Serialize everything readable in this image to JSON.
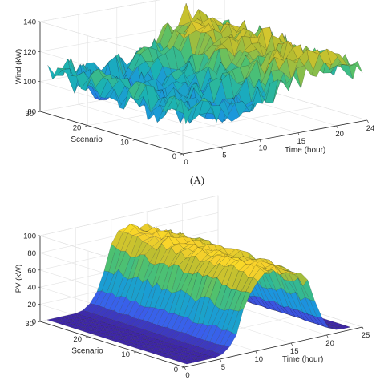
{
  "figure": {
    "caption_a": "(A)"
  },
  "chart_data": [
    {
      "type": "surface",
      "id": "wind",
      "zlabel": "Wind (kW)",
      "xlabel": "Time (hour)",
      "ylabel": "Scenario",
      "xlim": [
        0,
        24
      ],
      "ylim": [
        0,
        30
      ],
      "zlim": [
        80,
        140
      ],
      "xticks": [
        0,
        5,
        10,
        15,
        20,
        24
      ],
      "yticks": [
        0,
        10,
        20,
        30
      ],
      "zticks": [
        80,
        100,
        120,
        140
      ],
      "grid": true,
      "colormap": [
        "#3e26a8",
        "#3a5eeb",
        "#1b96dd",
        "#1ab2b4",
        "#50c16e",
        "#b6bc30",
        "#f9d22b",
        "#f9fb15"
      ],
      "time_points": [
        1,
        2,
        3,
        4,
        5,
        6,
        7,
        8,
        9,
        10,
        11,
        12,
        13,
        14,
        15,
        16,
        17,
        18,
        19,
        20,
        21,
        22,
        23,
        24
      ],
      "scenario_points": [
        1,
        2,
        3,
        4,
        5,
        6,
        7,
        8,
        9,
        10,
        11,
        12,
        13,
        14,
        15,
        16,
        17,
        18,
        19,
        20,
        21,
        22,
        23,
        24,
        25,
        26,
        27,
        28,
        29,
        30
      ],
      "profile_kw": [
        103,
        104,
        102,
        101,
        100,
        99,
        100,
        101,
        102,
        104,
        106,
        108,
        110,
        113,
        116,
        119,
        121,
        123,
        124,
        122,
        120,
        117,
        113,
        110
      ],
      "spread_kw": 9
    },
    {
      "type": "surface",
      "id": "pv",
      "zlabel": "PV (kW)",
      "xlabel": "Time (hour)",
      "ylabel": "Scenario",
      "xlim": [
        0,
        25
      ],
      "ylim": [
        0,
        30
      ],
      "zlim": [
        0,
        100
      ],
      "xticks": [
        0,
        5,
        10,
        15,
        20,
        25
      ],
      "yticks": [
        0,
        10,
        20,
        30
      ],
      "zticks": [
        0,
        20,
        40,
        60,
        80,
        100
      ],
      "grid": true,
      "colormap": [
        "#3e26a8",
        "#3a5eeb",
        "#1b96dd",
        "#1ab2b4",
        "#50c16e",
        "#b6bc30",
        "#f9d22b",
        "#f9fb15"
      ],
      "time_points": [
        1,
        2,
        3,
        4,
        5,
        6,
        7,
        8,
        9,
        10,
        11,
        12,
        13,
        14,
        15,
        16,
        17,
        18,
        19,
        20,
        21,
        22,
        23,
        24
      ],
      "scenario_points": [
        1,
        2,
        3,
        4,
        5,
        6,
        7,
        8,
        9,
        10,
        11,
        12,
        13,
        14,
        15,
        16,
        17,
        18,
        19,
        20,
        21,
        22,
        23,
        24,
        25,
        26,
        27,
        28,
        29,
        30
      ],
      "profile_kw": [
        0,
        0,
        0,
        0,
        0,
        2,
        8,
        22,
        45,
        68,
        82,
        88,
        86,
        84,
        82,
        80,
        76,
        62,
        40,
        18,
        5,
        1,
        0,
        0
      ],
      "spread_kw": 5
    }
  ]
}
